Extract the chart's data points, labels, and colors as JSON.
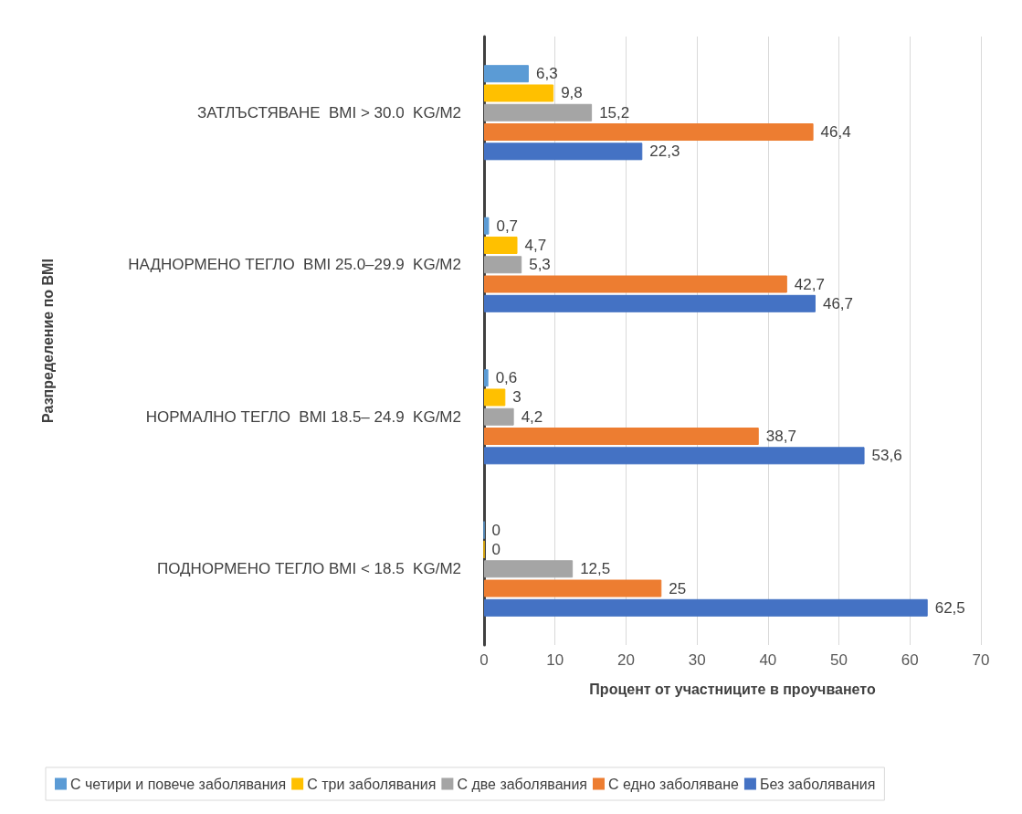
{
  "chart_data": {
    "type": "bar",
    "orientation": "horizontal",
    "xlabel": "Процент от участниците в проучването",
    "ylabel": "Разпределение по BMI",
    "categories": [
      "ЗАТЛЪСТЯВАНЕ  BMI > 30.0  KG/M2",
      "НАДНОРМЕНО ТЕГЛО  BMI 25.0–29.9  KG/M2",
      "НОРМАЛНО ТЕГЛО  BMI 18.5– 24.9  KG/M2",
      "ПОДНОРМЕНО ТЕГЛО BMI < 18.5  KG/M2"
    ],
    "series": [
      {
        "name": "С четири и повече заболявания",
        "color": "#5b9bd5",
        "values": [
          6.3,
          0.7,
          0.6,
          0
        ],
        "value_labels": [
          "6,3",
          "0,7",
          "0,6",
          "0"
        ]
      },
      {
        "name": "С три заболявания",
        "color": "#ffc000",
        "values": [
          9.8,
          4.7,
          3,
          0
        ],
        "value_labels": [
          "9,8",
          "4,7",
          "3",
          "0"
        ]
      },
      {
        "name": "С две заболявания",
        "color": "#a5a5a5",
        "values": [
          15.2,
          5.3,
          4.2,
          12.5
        ],
        "value_labels": [
          "15,2",
          "5,3",
          "4,2",
          "12,5"
        ]
      },
      {
        "name": "С едно заболяване",
        "color": "#ed7d31",
        "values": [
          46.4,
          42.7,
          38.7,
          25
        ],
        "value_labels": [
          "46,4",
          "42,7",
          "38,7",
          "25"
        ]
      },
      {
        "name": "Без заболявания",
        "color": "#4472c4",
        "values": [
          22.3,
          46.7,
          53.6,
          62.5
        ],
        "value_labels": [
          "22,3",
          "46,7",
          "53,6",
          "62,5"
        ]
      }
    ],
    "xlim": [
      0,
      70
    ],
    "xticks": [
      0,
      10,
      20,
      30,
      40,
      50,
      60,
      70
    ],
    "grid": "x",
    "legend": "bottom"
  }
}
